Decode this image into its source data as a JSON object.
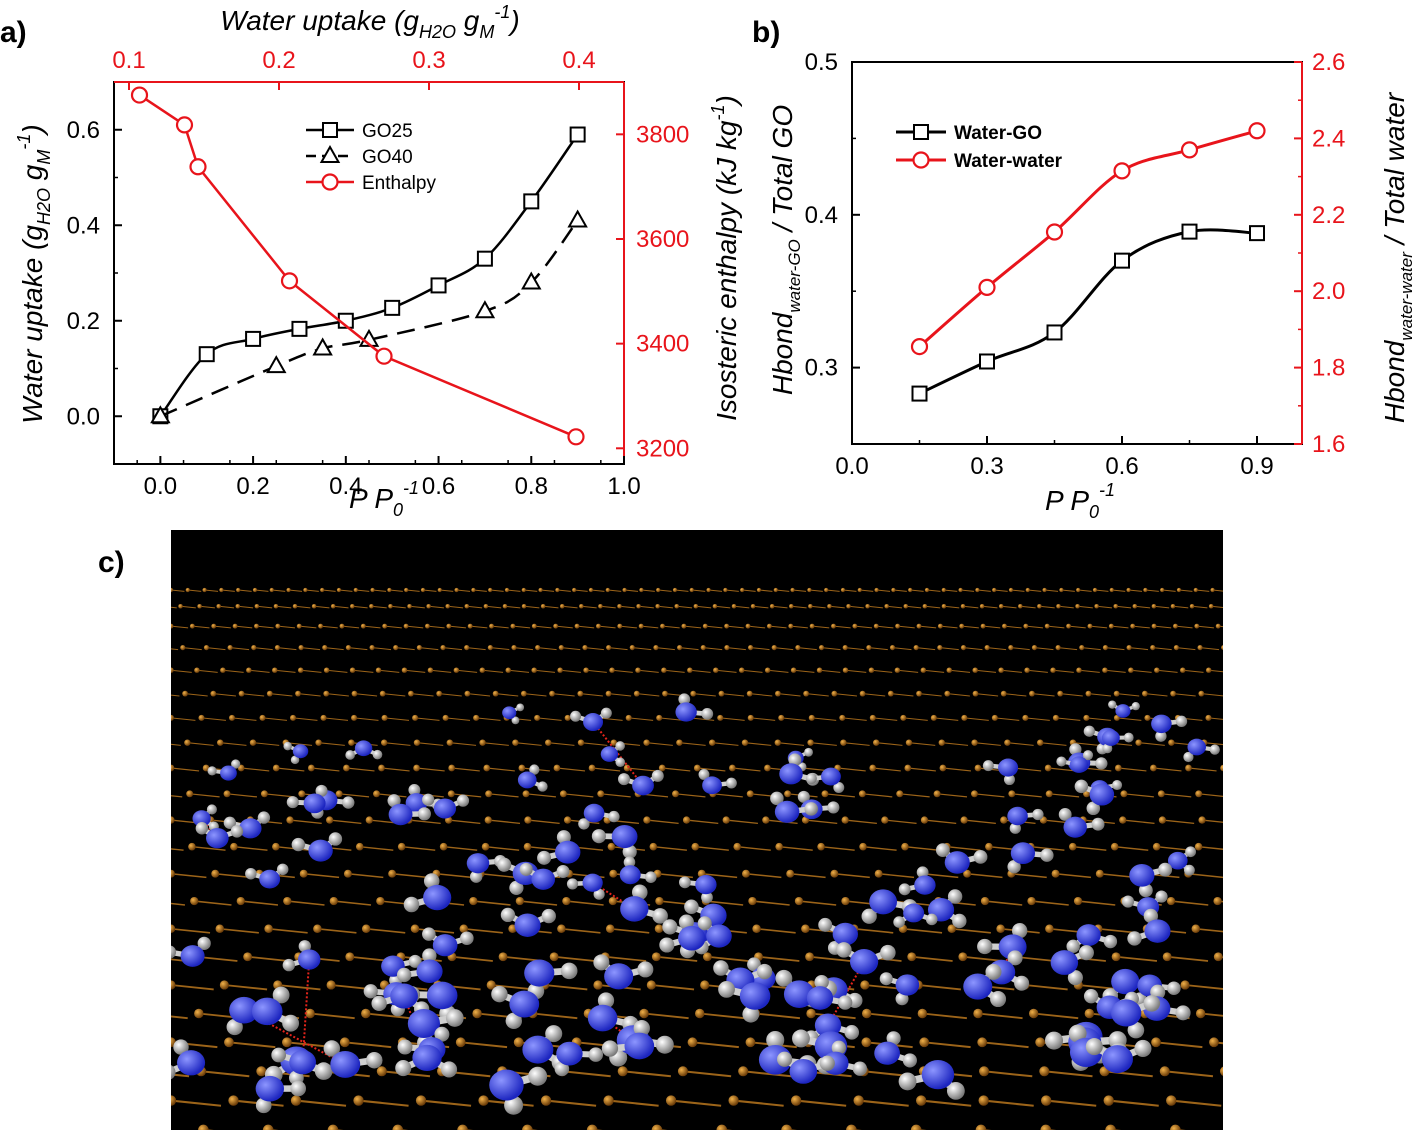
{
  "colors": {
    "black": "#000000",
    "red": "#e8141b",
    "mol_bg": "#000000",
    "carbon": "#c47a1c",
    "oxygen": "#3a49f0",
    "hydrogen": "#bcbcbc",
    "hbond": "#e4241b"
  },
  "panels": {
    "a": "a)",
    "b": "b)",
    "c": "c)"
  },
  "chart_data": [
    {
      "id": "a",
      "type": "line",
      "xlabel": {
        "main": "P P",
        "sub": "0",
        "sup": "-1"
      },
      "ylabel": {
        "pre": "Water uptake (g",
        "sub1": "H2O",
        "mid": " g",
        "sub2": "M",
        "sup": "-1",
        "post": ")"
      },
      "y2label": {
        "pre": "Isosteric enthalpy (kJ kg",
        "sup": "-1",
        "post": ")"
      },
      "x2label": {
        "pre": "Water uptake (g",
        "sub1": "H2O",
        "mid": " g",
        "sub2": "M",
        "sup": "-1",
        "post": ")"
      },
      "xlim": [
        -0.1,
        1.0
      ],
      "ylim": [
        -0.1,
        0.7
      ],
      "y2lim": [
        3170,
        3900
      ],
      "x2lim": [
        0.09,
        0.43
      ],
      "xticks": [
        "0.0",
        "0.2",
        "0.4",
        "0.6",
        "0.8",
        "1.0"
      ],
      "yticks": [
        "0.0",
        "0.2",
        "0.4",
        "0.6"
      ],
      "y2ticks": [
        "3200",
        "3400",
        "3600",
        "3800"
      ],
      "x2ticks": [
        "0.1",
        "0.2",
        "0.3",
        "0.4"
      ],
      "legend_position": "top-center",
      "series": [
        {
          "name": "GO25",
          "marker": "square",
          "axes": "x-y",
          "dash": "solid",
          "x": [
            0.0,
            0.1,
            0.2,
            0.3,
            0.4,
            0.5,
            0.6,
            0.7,
            0.8,
            0.9
          ],
          "y": [
            0.0,
            0.13,
            0.162,
            0.183,
            0.2,
            0.227,
            0.274,
            0.33,
            0.45,
            0.59
          ]
        },
        {
          "name": "GO40",
          "marker": "triangle",
          "axes": "x-y",
          "dash": "dashed",
          "x": [
            0.0,
            0.25,
            0.35,
            0.45,
            0.7,
            0.8,
            0.9
          ],
          "y": [
            0.0,
            0.105,
            0.142,
            0.16,
            0.22,
            0.28,
            0.41
          ]
        },
        {
          "name": "Enthalpy",
          "marker": "circle",
          "axes": "x2-y2",
          "dash": "solid",
          "color": "#e8141b",
          "x": [
            0.107,
            0.137,
            0.146,
            0.207,
            0.27,
            0.398
          ],
          "y": [
            3875,
            3818,
            3738,
            3520,
            3376,
            3222
          ]
        }
      ]
    },
    {
      "id": "b",
      "type": "line",
      "xlabel": {
        "main": "P P",
        "sub": "0",
        "sup": "-1"
      },
      "ylabel": {
        "pre": "Hbond",
        "sub": "water-GO",
        "post": " / Total GO"
      },
      "y2label": {
        "pre": "Hbond",
        "sub": "water-water",
        "post": " / Total  water"
      },
      "xlim": [
        0.0,
        1.0
      ],
      "ylim": [
        0.25,
        0.5
      ],
      "y2lim": [
        1.6,
        2.6
      ],
      "xticks": [
        "0.0",
        "0.3",
        "0.6",
        "0.9"
      ],
      "yticks": [
        "0.3",
        "0.4",
        "0.5"
      ],
      "y2ticks": [
        "1.6",
        "1.8",
        "2.0",
        "2.2",
        "2.4",
        "2.6"
      ],
      "legend_position": "top-left",
      "series": [
        {
          "name": "Water-GO",
          "marker": "square",
          "axes": "x-y",
          "x": [
            0.15,
            0.3,
            0.45,
            0.6,
            0.75,
            0.9
          ],
          "y": [
            0.283,
            0.304,
            0.323,
            0.37,
            0.389,
            0.388
          ]
        },
        {
          "name": "Water-water",
          "marker": "circle",
          "axes": "x-y2",
          "color": "#e8141b",
          "x": [
            0.15,
            0.3,
            0.45,
            0.6,
            0.75,
            0.9
          ],
          "y": [
            1.855,
            2.01,
            2.155,
            2.315,
            2.37,
            2.42
          ]
        }
      ]
    }
  ]
}
